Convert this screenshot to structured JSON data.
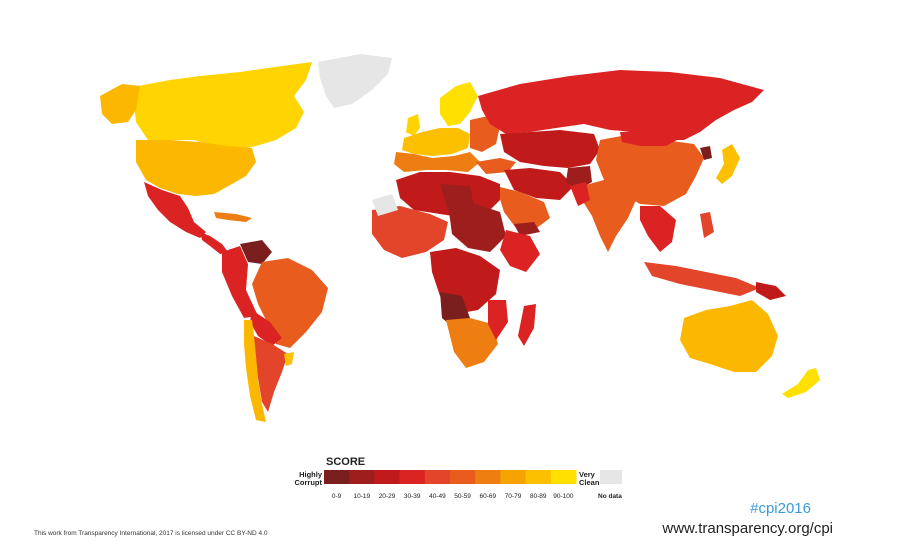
{
  "legend": {
    "title": "SCORE",
    "low_label_line1": "Highly",
    "low_label_line2": "Corrupt",
    "high_label_line1": "Very",
    "high_label_line2": "Clean",
    "ranges": [
      "0-9",
      "10-19",
      "20-29",
      "30-39",
      "40-49",
      "50-59",
      "60-69",
      "70-79",
      "80-89",
      "90-100"
    ],
    "nodata_label": "No data",
    "colors": {
      "band_0_9": "#7a1e1e",
      "band_10_19": "#9e1e1e",
      "band_20_29": "#c01a1a",
      "band_30_39": "#dc2323",
      "band_40_49": "#e2452a",
      "band_50_59": "#e85c1e",
      "band_60_69": "#ee7d12",
      "band_70_79": "#f5a300",
      "band_80_89": "#fcc000",
      "band_90_100": "#ffe000",
      "nodata": "#e6e6e6"
    }
  },
  "hashtag": "#cpi2016",
  "url": "www.transparency.org/cpi",
  "credit": "This work from Transparency International, 2017 is licensed under CC BY-ND 4.0"
}
